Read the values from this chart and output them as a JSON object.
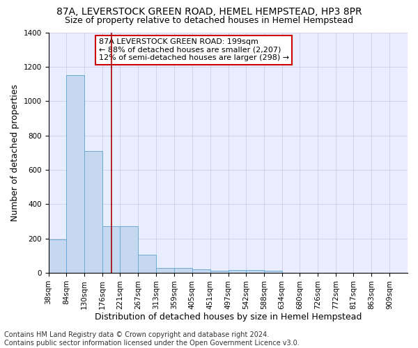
{
  "title": "87A, LEVERSTOCK GREEN ROAD, HEMEL HEMPSTEAD, HP3 8PR",
  "subtitle": "Size of property relative to detached houses in Hemel Hempstead",
  "xlabel": "Distribution of detached houses by size in Hemel Hempstead",
  "ylabel": "Number of detached properties",
  "footer_line1": "Contains HM Land Registry data © Crown copyright and database right 2024.",
  "footer_line2": "Contains public sector information licensed under the Open Government Licence v3.0.",
  "annotation_line1": "87A LEVERSTOCK GREEN ROAD: 199sqm",
  "annotation_line2": "← 88% of detached houses are smaller (2,207)",
  "annotation_line3": "12% of semi-detached houses are larger (298) →",
  "bar_edges": [
    38,
    84,
    130,
    176,
    221,
    267,
    313,
    359,
    405,
    451,
    497,
    542,
    588,
    634,
    680,
    726,
    772,
    817,
    863,
    909,
    955
  ],
  "bar_heights": [
    193,
    1152,
    710,
    270,
    270,
    107,
    30,
    28,
    21,
    13,
    15,
    15,
    14,
    0,
    0,
    0,
    0,
    0,
    0,
    0
  ],
  "bar_color": "#c5d8f0",
  "bar_edge_color": "#6aaad4",
  "vline_color": "#aa0000",
  "vline_x": 199,
  "ylim": [
    0,
    1400
  ],
  "yticks": [
    0,
    200,
    400,
    600,
    800,
    1000,
    1200,
    1400
  ],
  "bg_color": "#e8eeff",
  "grid_color": "#c8cfe8",
  "title_fontsize": 10,
  "subtitle_fontsize": 9,
  "axis_label_fontsize": 9,
  "tick_fontsize": 7.5,
  "annotation_fontsize": 8,
  "footer_fontsize": 7
}
